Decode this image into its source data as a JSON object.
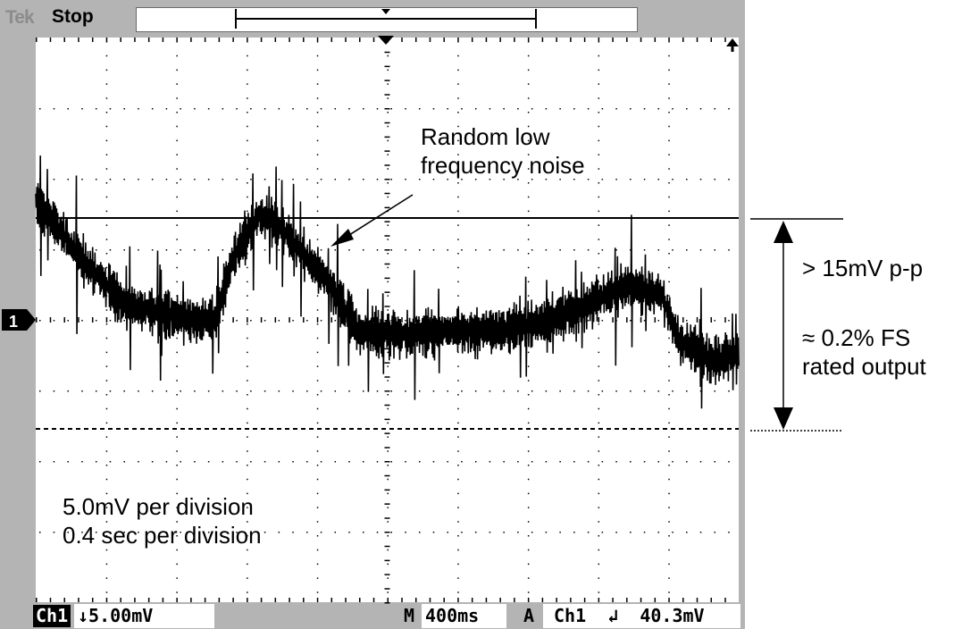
{
  "scope": {
    "brand": "Tek",
    "run_state": "Stop",
    "channel_marker": "1",
    "bottom_bar": {
      "channel_tag": "Ch1",
      "volts_per_div": "↓5.00mV",
      "timebase_tag": "M",
      "time_per_div": "400ms",
      "trigger_tag": "A",
      "trigger_readout": "Ch1  ↲  40.3mV"
    }
  },
  "annotations": {
    "noise_label_line1": "Random low",
    "noise_label_line2": "frequency noise",
    "pp_label": "> 15mV p-p",
    "fs_label_line1": "≈ 0.2% FS",
    "fs_label_line2": "rated output",
    "div_label_line1": "5.0mV per division",
    "div_label_line2": "0.4 sec per division"
  },
  "colors": {
    "bezel": "#b4b4b4",
    "screen": "#ffffff",
    "trace": "#000000",
    "grid": "#000000"
  }
}
